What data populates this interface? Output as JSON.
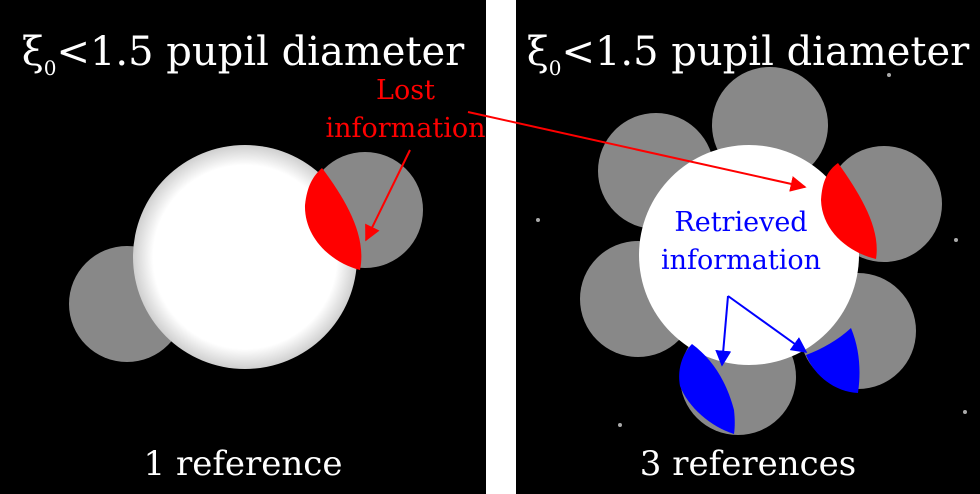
{
  "left_panel": {
    "title_prefix": "ξ",
    "title_subscript": "0",
    "title_suffix": "<1.5 pupil diameter",
    "caption": "1 reference",
    "note_line1": "Lost",
    "note_line2": "information"
  },
  "right_panel": {
    "title_prefix": "ξ",
    "title_subscript": "0",
    "title_suffix": "<1.5 pupil diameter",
    "caption": "3 references",
    "note_line1": "Retrieved",
    "note_line2": "information"
  },
  "colors": {
    "background": "#000000",
    "pupil": "#ffffff",
    "reference": "#888888",
    "lost": "#ff0000",
    "retrieved": "#0000ff",
    "text": "#ffffff"
  }
}
